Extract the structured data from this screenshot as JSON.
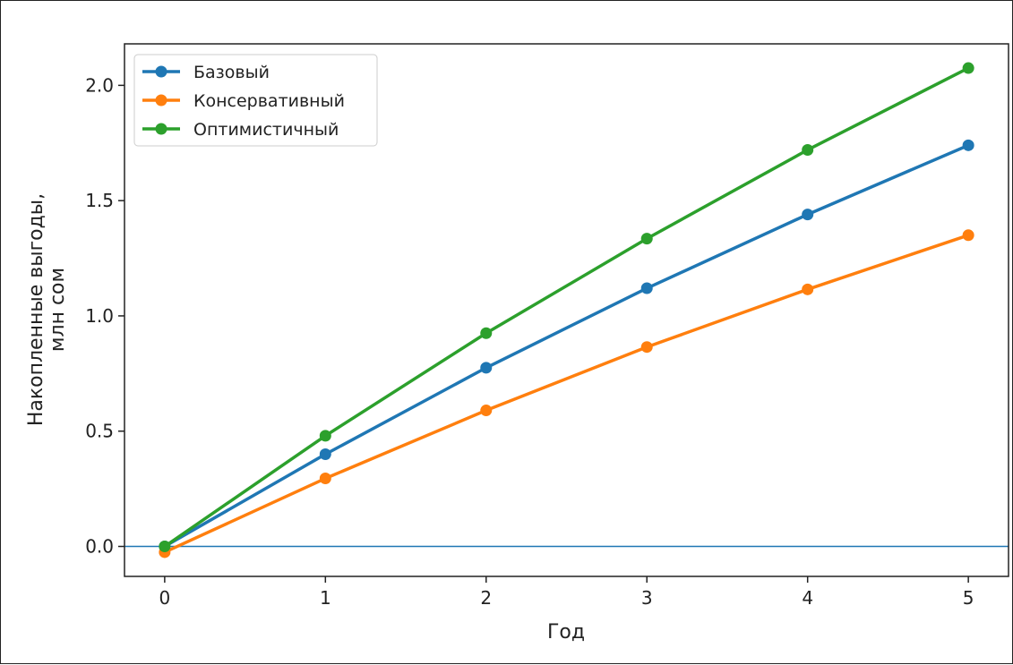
{
  "chart_data": {
    "type": "line",
    "title": "",
    "xlabel": "Год",
    "ylabel": [
      "Накопленные выгоды,",
      "млн сом"
    ],
    "x": [
      0,
      1,
      2,
      3,
      4,
      5
    ],
    "xticks": [
      "0",
      "1",
      "2",
      "3",
      "4",
      "5"
    ],
    "yticks": [
      "0.0",
      "0.5",
      "1.0",
      "1.5",
      "2.0"
    ],
    "ytick_values": [
      0.0,
      0.5,
      1.0,
      1.5,
      2.0
    ],
    "xlim": [
      -0.25,
      5.25
    ],
    "ylim": [
      -0.13,
      2.18
    ],
    "grid": false,
    "legend_position": "top-left",
    "reference_line": {
      "y": 0.0,
      "color": "#1f77b4"
    },
    "series": [
      {
        "name": "Базовый",
        "color": "#1f77b4",
        "values": [
          0.0,
          0.4,
          0.775,
          1.12,
          1.44,
          1.74
        ]
      },
      {
        "name": "Консервативный",
        "color": "#ff7f0e",
        "values": [
          -0.025,
          0.295,
          0.59,
          0.865,
          1.115,
          1.35
        ]
      },
      {
        "name": "Оптимистичный",
        "color": "#2ca02c",
        "values": [
          0.0,
          0.48,
          0.925,
          1.335,
          1.72,
          2.075
        ]
      }
    ]
  }
}
